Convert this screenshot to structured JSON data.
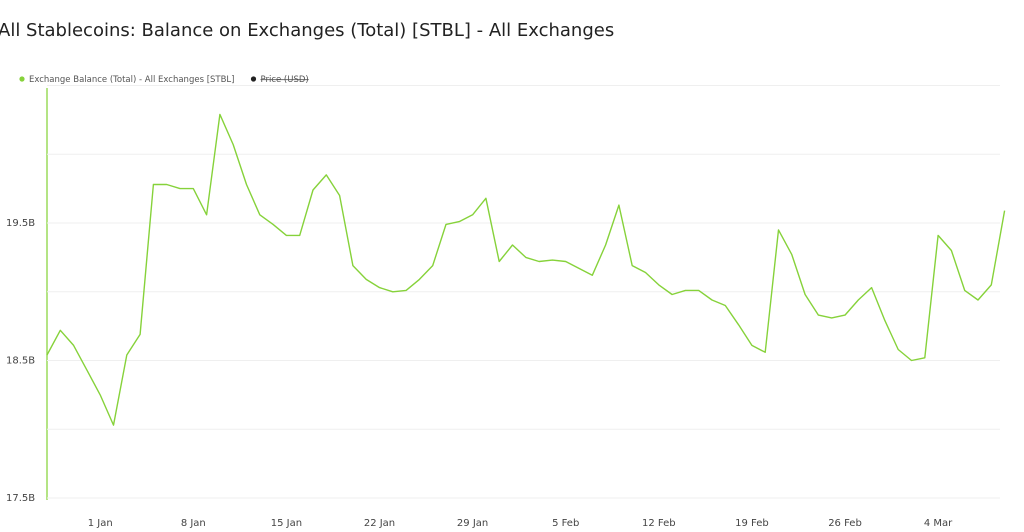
{
  "chart_data": {
    "type": "line",
    "title": "All Stablecoins: Balance on Exchanges (Total) [STBL] - All Exchanges",
    "categories": [
      null,
      null,
      null,
      null,
      "1 Jan",
      null,
      null,
      null,
      null,
      null,
      null,
      "8 Jan",
      null,
      null,
      null,
      null,
      null,
      null,
      "15 Jan",
      null,
      null,
      null,
      null,
      null,
      null,
      "22 Jan",
      null,
      null,
      null,
      null,
      null,
      null,
      "29 Jan",
      null,
      null,
      null,
      null,
      null,
      null,
      "5 Feb",
      null,
      null,
      null,
      null,
      null,
      null,
      "12 Feb",
      null,
      null,
      null,
      null,
      null,
      null,
      "19 Feb",
      null,
      null,
      null,
      null,
      null,
      null,
      "26 Feb",
      null,
      null,
      null,
      null,
      null,
      null,
      "4 Mar",
      null,
      null,
      null,
      null,
      null
    ],
    "series": [
      {
        "name": "Exchange Balance (Total) - All Exchanges [STBL]",
        "color": "#86d23a",
        "values": [
          18540000000,
          18720000000,
          18610000000,
          18430000000,
          18250000000,
          18030000000,
          18540000000,
          18690000000,
          19780000000,
          19780000000,
          19750000000,
          19750000000,
          19560000000,
          20290000000,
          20070000000,
          19780000000,
          19560000000,
          19490000000,
          19410000000,
          19410000000,
          19740000000,
          19850000000,
          19700000000,
          19190000000,
          19090000000,
          19030000000,
          19000000000,
          19010000000,
          19090000000,
          19190000000,
          19490000000,
          19510000000,
          19560000000,
          19680000000,
          19220000000,
          19340000000,
          19250000000,
          19220000000,
          19230000000,
          19220000000,
          19170000000,
          19120000000,
          19340000000,
          19630000000,
          19190000000,
          19140000000,
          19050000000,
          18980000000,
          19010000000,
          19010000000,
          18940000000,
          18900000000,
          18760000000,
          18610000000,
          18560000000,
          19450000000,
          19270000000,
          18980000000,
          18830000000,
          18810000000,
          18830000000,
          18940000000,
          19030000000,
          18790000000,
          18580000000,
          18500000000,
          18520000000,
          19410000000,
          19300000000,
          19010000000,
          18940000000,
          19050000000,
          19590000000
        ]
      },
      {
        "name": "Price (USD)",
        "color": "#222222",
        "hidden": true
      }
    ],
    "ylim": [
      17500000000,
      20500000000
    ],
    "yticks": [
      {
        "value": 17500000000,
        "label": "17.5B"
      },
      {
        "value": 18000000000,
        "label": null
      },
      {
        "value": 18500000000,
        "label": "18.5B"
      },
      {
        "value": 19000000000,
        "label": null
      },
      {
        "value": 19500000000,
        "label": "19.5B"
      },
      {
        "value": 20000000000,
        "label": null
      },
      {
        "value": 20500000000,
        "label": null
      }
    ],
    "grid": true
  }
}
